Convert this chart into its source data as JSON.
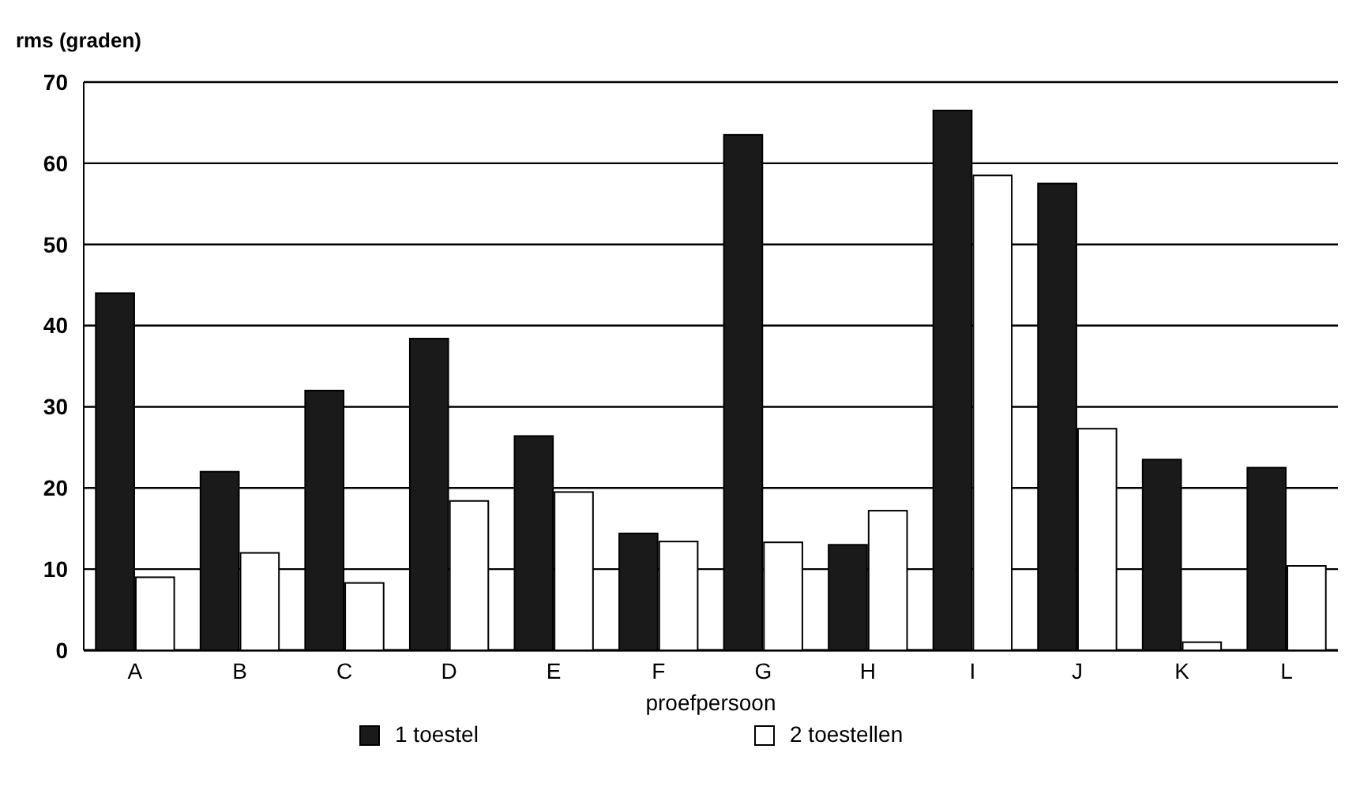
{
  "chart_data": {
    "type": "bar",
    "ylabel": "rms (graden)",
    "xlabel": "proefpersoon",
    "categories": [
      "A",
      "B",
      "C",
      "D",
      "E",
      "F",
      "G",
      "H",
      "I",
      "J",
      "K",
      "L"
    ],
    "series": [
      {
        "name": "1 toestel",
        "color": "#1a1a1a",
        "values": [
          44,
          22,
          32,
          38.4,
          26.4,
          14.4,
          63.5,
          13,
          66.5,
          57.5,
          23.5,
          22.5
        ]
      },
      {
        "name": "2 toestellen",
        "color": "#ffffff",
        "values": [
          9,
          12,
          8.3,
          18.4,
          19.5,
          13.4,
          13.3,
          17.2,
          58.5,
          27.3,
          1,
          10.4
        ]
      }
    ],
    "ylim": [
      0,
      70
    ],
    "yticks": [
      0,
      10,
      20,
      30,
      40,
      50,
      60,
      70
    ],
    "grid": "y",
    "legend": "bottom"
  }
}
